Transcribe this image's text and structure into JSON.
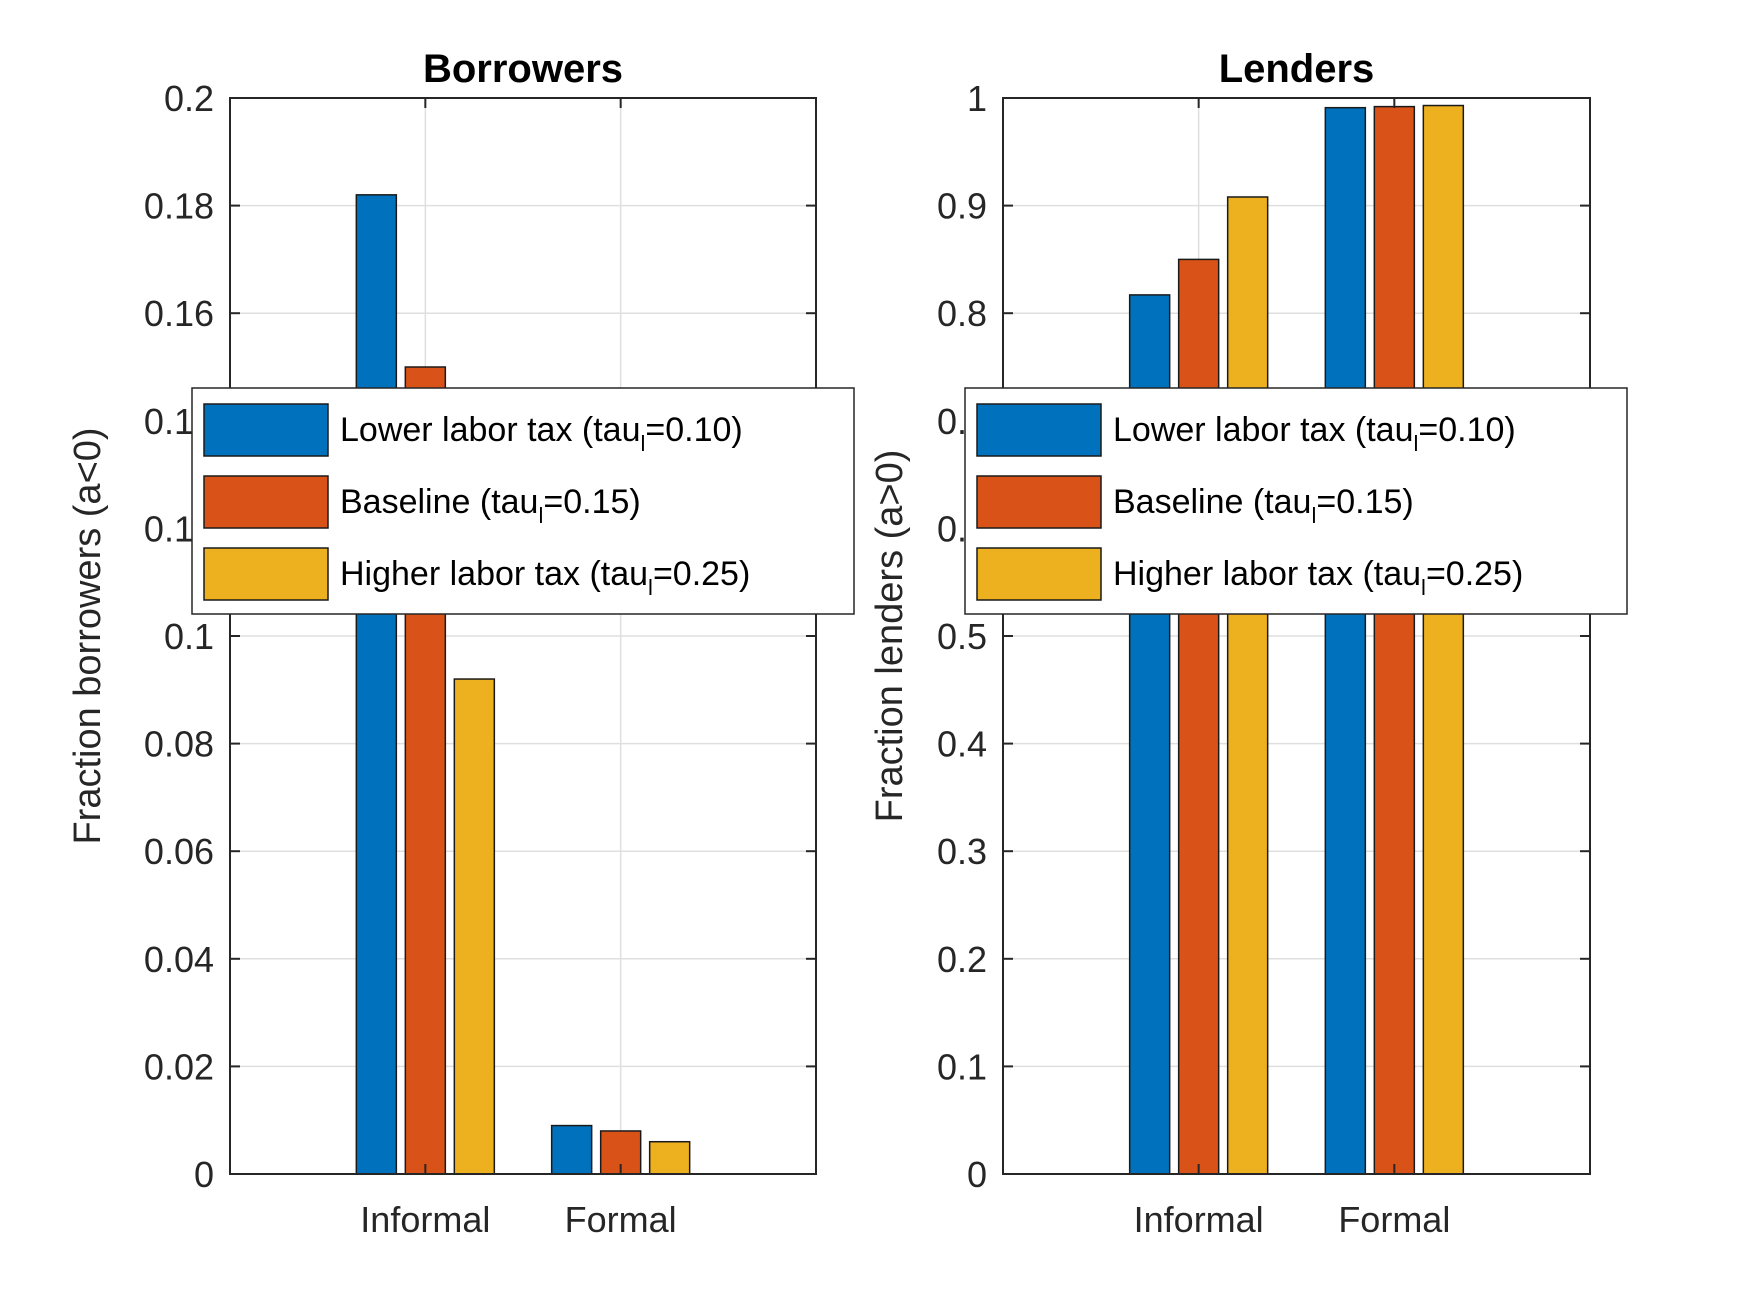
{
  "chart_data": [
    {
      "type": "bar",
      "title": "Borrowers",
      "xlabel": "",
      "ylabel": "Fraction borrowers (a<0)",
      "categories": [
        "Informal",
        "Formal"
      ],
      "ylim": [
        0,
        0.2
      ],
      "yticks": [
        0,
        0.02,
        0.04,
        0.06,
        0.08,
        0.1,
        0.12,
        0.14,
        0.16,
        0.18,
        0.2
      ],
      "ytick_labels": [
        "0",
        "0.02",
        "0.04",
        "0.06",
        "0.08",
        "0.1",
        "0.12",
        "0.14",
        "0.16",
        "0.18",
        "0.2"
      ],
      "grid": true,
      "legend": "center-left",
      "series": [
        {
          "name": "Lower labor tax (tau_l=0.10)",
          "values": [
            0.182,
            0.009
          ],
          "color": "#0072BD"
        },
        {
          "name": "Baseline (tau_l=0.15)",
          "values": [
            0.15,
            0.008
          ],
          "color": "#D95319"
        },
        {
          "name": "Higher labor tax (tau_l=0.25)",
          "values": [
            0.092,
            0.006
          ],
          "color": "#EDB120"
        }
      ]
    },
    {
      "type": "bar",
      "title": "Lenders",
      "xlabel": "",
      "ylabel": "Fraction lenders (a>0)",
      "categories": [
        "Informal",
        "Formal"
      ],
      "ylim": [
        0,
        1
      ],
      "yticks": [
        0,
        0.1,
        0.2,
        0.3,
        0.4,
        0.5,
        0.6,
        0.7,
        0.8,
        0.9,
        1
      ],
      "ytick_labels": [
        "0",
        "0.1",
        "0.2",
        "0.3",
        "0.4",
        "0.5",
        "0.6",
        "0.7",
        "0.8",
        "0.9",
        "1"
      ],
      "grid": true,
      "legend": "center-left",
      "series": [
        {
          "name": "Lower labor tax (tau_l=0.10)",
          "values": [
            0.817,
            0.991
          ],
          "color": "#0072BD"
        },
        {
          "name": "Baseline (tau_l=0.15)",
          "values": [
            0.85,
            0.992
          ],
          "color": "#D95319"
        },
        {
          "name": "Higher labor tax (tau_l=0.25)",
          "values": [
            0.908,
            0.993
          ],
          "color": "#EDB120"
        }
      ]
    }
  ],
  "legend_labels": [
    {
      "pre": "Lower labor tax (tau",
      "sub": "l",
      "post": "=0.10)"
    },
    {
      "pre": "Baseline (tau",
      "sub": "l",
      "post": "=0.15)"
    },
    {
      "pre": "Higher labor tax (tau",
      "sub": "l",
      "post": "=0.25)"
    }
  ]
}
